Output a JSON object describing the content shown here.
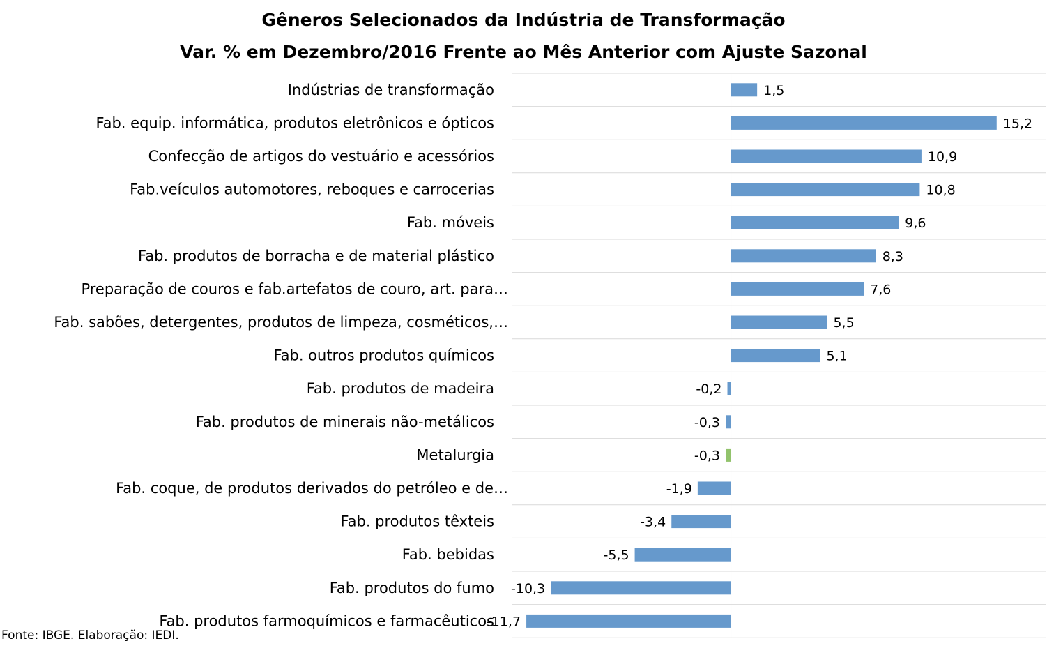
{
  "chart_data": {
    "type": "bar",
    "orientation": "horizontal",
    "title": "Gêneros Selecionados da Indústria de Transformação",
    "subtitle": "Var. % em Dezembro/2016 Frente ao Mês Anterior com Ajuste Sazonal",
    "source": "Fonte: IBGE. Elaboração: IEDI.",
    "categories": [
      "Indústrias de transformação",
      "Fab. equip. informática, produtos eletrônicos e ópticos",
      "Confecção de artigos do vestuário e acessórios",
      "Fab.veículos automotores, reboques e carrocerias",
      "Fab. móveis",
      "Fab. produtos de borracha e de material plástico",
      "Preparação de couros e fab.artefatos de couro, art. para…",
      "Fab. sabões, detergentes, produtos de limpeza, cosméticos,…",
      "Fab. outros produtos químicos",
      "Fab. produtos de madeira",
      "Fab. produtos de minerais não-metálicos",
      "Metalurgia",
      "Fab. coque, de produtos derivados do petróleo e de…",
      "Fab. produtos têxteis",
      "Fab. bebidas",
      "Fab. produtos do fumo",
      "Fab. produtos farmoquímicos e farmacêuticos"
    ],
    "values": [
      1.5,
      15.2,
      10.9,
      10.8,
      9.6,
      8.3,
      7.6,
      5.5,
      5.1,
      -0.2,
      -0.3,
      -0.3,
      -1.9,
      -3.4,
      -5.5,
      -10.3,
      -11.7
    ],
    "value_labels": [
      "1,5",
      "15,2",
      "10,9",
      "10,8",
      "9,6",
      "8,3",
      "7,6",
      "5,5",
      "5,1",
      "-0,2",
      "-0,3",
      "-0,3",
      "-1,9",
      "-3,4",
      "-5,5",
      "-10,3",
      "-11,7"
    ],
    "bar_colors": [
      "#6699cc",
      "#6699cc",
      "#6699cc",
      "#6699cc",
      "#6699cc",
      "#6699cc",
      "#6699cc",
      "#6699cc",
      "#6699cc",
      "#6699cc",
      "#6699cc",
      "#92c36c",
      "#6699cc",
      "#6699cc",
      "#6699cc",
      "#6699cc",
      "#6699cc"
    ],
    "xlim": [
      -12.5,
      18
    ],
    "grid": true,
    "legend": "none"
  }
}
